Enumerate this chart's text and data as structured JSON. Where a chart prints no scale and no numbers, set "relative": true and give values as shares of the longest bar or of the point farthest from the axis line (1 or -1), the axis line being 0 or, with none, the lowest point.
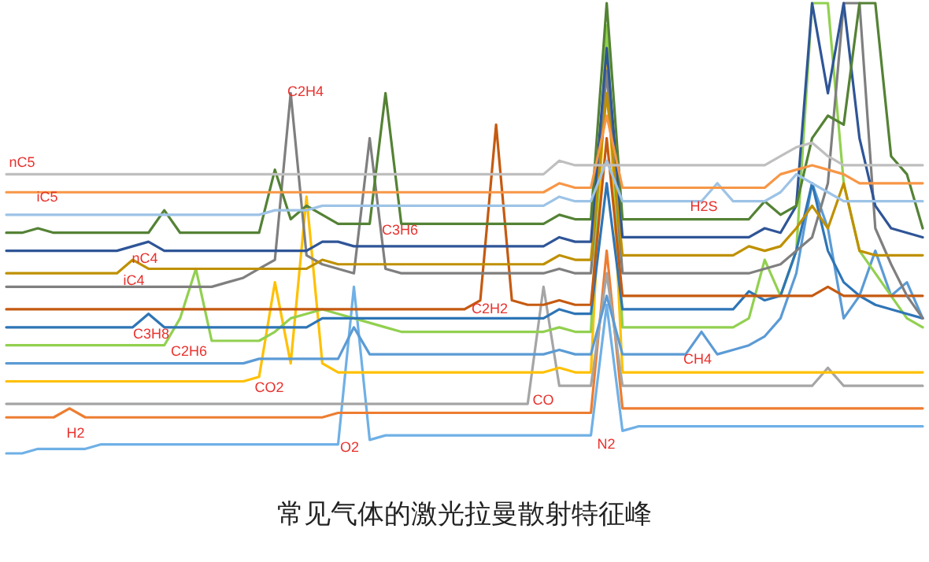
{
  "chart_data": {
    "type": "line",
    "relative": true,
    "title": "常见气体的激光拉曼散射特征峰",
    "categories": [
      null,
      null,
      null,
      null,
      null,
      null,
      null,
      null,
      null,
      null,
      null,
      null,
      null,
      null,
      null,
      null,
      null,
      null,
      null,
      null,
      null,
      null,
      null,
      null,
      null,
      null,
      null,
      null,
      null,
      null,
      null,
      null,
      null,
      null,
      null,
      null,
      null,
      null,
      null,
      null,
      null,
      null,
      null,
      null,
      null,
      null,
      null,
      null,
      null,
      null,
      null,
      null,
      null,
      null,
      null,
      null,
      null,
      null,
      null
    ],
    "annotations": [
      "nC5",
      "iC5",
      "C2H4",
      "C3H6",
      "nC4",
      "iC4",
      "H2S",
      "C2H2",
      "C3H8",
      "C2H6",
      "CH4",
      "CO2",
      "CO",
      "H2",
      "O2",
      "N2"
    ],
    "series": [
      {
        "color": "#bfbfbf",
        "values": [
          0.62,
          0.62,
          0.62,
          0.62,
          0.62,
          0.62,
          0.62,
          0.62,
          0.62,
          0.62,
          0.62,
          0.62,
          0.62,
          0.62,
          0.62,
          0.62,
          0.62,
          0.62,
          0.62,
          0.62,
          0.62,
          0.62,
          0.62,
          0.62,
          0.62,
          0.62,
          0.62,
          0.62,
          0.62,
          0.62,
          0.62,
          0.62,
          0.62,
          0.62,
          0.62,
          0.65,
          0.64,
          0.64,
          0.64,
          0.64,
          0.64,
          0.64,
          0.64,
          0.64,
          0.64,
          0.64,
          0.64,
          0.64,
          0.64,
          0.66,
          0.68,
          0.69,
          0.66,
          0.64,
          0.64,
          0.64,
          0.64,
          0.64,
          0.64
        ]
      },
      {
        "color": "#f79646",
        "values": [
          0.58,
          0.58,
          0.58,
          0.58,
          0.58,
          0.58,
          0.58,
          0.58,
          0.58,
          0.58,
          0.58,
          0.58,
          0.58,
          0.58,
          0.58,
          0.58,
          0.58,
          0.58,
          0.58,
          0.58,
          0.58,
          0.58,
          0.58,
          0.58,
          0.58,
          0.58,
          0.58,
          0.58,
          0.58,
          0.58,
          0.58,
          0.58,
          0.58,
          0.58,
          0.58,
          0.6,
          0.59,
          0.59,
          0.75,
          0.59,
          0.59,
          0.59,
          0.59,
          0.59,
          0.59,
          0.59,
          0.59,
          0.59,
          0.59,
          0.62,
          0.63,
          0.64,
          0.63,
          0.62,
          0.6,
          0.6,
          0.6,
          0.6,
          0.6
        ]
      },
      {
        "color": "#9dc3e6",
        "values": [
          0.53,
          0.53,
          0.53,
          0.53,
          0.53,
          0.53,
          0.53,
          0.53,
          0.53,
          0.53,
          0.53,
          0.53,
          0.53,
          0.53,
          0.53,
          0.53,
          0.53,
          0.54,
          0.54,
          0.54,
          0.55,
          0.55,
          0.55,
          0.55,
          0.55,
          0.55,
          0.55,
          0.55,
          0.55,
          0.55,
          0.55,
          0.55,
          0.55,
          0.55,
          0.55,
          0.57,
          0.56,
          0.56,
          0.65,
          0.56,
          0.56,
          0.56,
          0.56,
          0.56,
          0.56,
          0.6,
          0.56,
          0.56,
          0.56,
          0.58,
          0.62,
          0.6,
          0.58,
          0.56,
          0.56,
          0.56,
          0.56,
          0.56,
          0.56
        ]
      },
      {
        "color": "#548235",
        "values": [
          0.49,
          0.49,
          0.5,
          0.49,
          0.49,
          0.49,
          0.49,
          0.49,
          0.49,
          0.49,
          0.54,
          0.49,
          0.49,
          0.49,
          0.49,
          0.49,
          0.49,
          0.63,
          0.52,
          0.55,
          0.53,
          0.51,
          0.51,
          0.51,
          0.8,
          0.51,
          0.51,
          0.51,
          0.51,
          0.51,
          0.51,
          0.51,
          0.51,
          0.51,
          0.51,
          0.53,
          0.52,
          0.52,
          1.0,
          0.52,
          0.52,
          0.52,
          0.52,
          0.52,
          0.52,
          0.52,
          0.52,
          0.52,
          0.56,
          0.53,
          0.55,
          0.7,
          0.75,
          0.73,
          1.0,
          1.0,
          0.66,
          0.62,
          0.5
        ]
      },
      {
        "color": "#2f5597",
        "values": [
          0.45,
          0.45,
          0.45,
          0.45,
          0.45,
          0.45,
          0.45,
          0.45,
          0.46,
          0.47,
          0.45,
          0.45,
          0.45,
          0.45,
          0.45,
          0.45,
          0.45,
          0.45,
          0.45,
          0.45,
          0.47,
          0.47,
          0.46,
          0.46,
          0.46,
          0.46,
          0.46,
          0.46,
          0.46,
          0.46,
          0.46,
          0.46,
          0.46,
          0.46,
          0.46,
          0.48,
          0.47,
          0.47,
          0.9,
          0.48,
          0.48,
          0.48,
          0.48,
          0.48,
          0.48,
          0.48,
          0.48,
          0.48,
          0.5,
          0.49,
          0.55,
          1.0,
          0.8,
          1.0,
          0.7,
          0.55,
          0.5,
          0.49,
          0.48
        ]
      },
      {
        "color": "#bf9000",
        "values": [
          0.4,
          0.4,
          0.4,
          0.4,
          0.4,
          0.4,
          0.4,
          0.4,
          0.43,
          0.41,
          0.41,
          0.41,
          0.41,
          0.41,
          0.41,
          0.41,
          0.41,
          0.41,
          0.41,
          0.41,
          0.43,
          0.42,
          0.42,
          0.42,
          0.42,
          0.42,
          0.42,
          0.42,
          0.42,
          0.42,
          0.42,
          0.42,
          0.42,
          0.42,
          0.42,
          0.44,
          0.43,
          0.43,
          0.8,
          0.44,
          0.44,
          0.44,
          0.44,
          0.44,
          0.44,
          0.44,
          0.44,
          0.46,
          0.45,
          0.46,
          0.5,
          0.55,
          0.5,
          0.6,
          0.45,
          0.44,
          0.44,
          0.44,
          0.44
        ]
      },
      {
        "color": "#7f7f7f",
        "values": [
          0.37,
          0.37,
          0.37,
          0.37,
          0.37,
          0.37,
          0.37,
          0.37,
          0.37,
          0.37,
          0.37,
          0.37,
          0.37,
          0.37,
          0.38,
          0.39,
          0.41,
          0.43,
          0.8,
          0.44,
          0.42,
          0.41,
          0.4,
          0.7,
          0.41,
          0.4,
          0.4,
          0.4,
          0.4,
          0.4,
          0.4,
          0.4,
          0.4,
          0.4,
          0.4,
          0.41,
          0.4,
          0.4,
          0.85,
          0.4,
          0.4,
          0.4,
          0.4,
          0.4,
          0.4,
          0.4,
          0.4,
          0.4,
          0.41,
          0.42,
          0.45,
          0.48,
          0.6,
          1.0,
          1.0,
          0.5,
          0.42,
          0.35,
          0.3
        ]
      },
      {
        "color": "#c55a11",
        "values": [
          0.32,
          0.32,
          0.32,
          0.32,
          0.32,
          0.32,
          0.32,
          0.32,
          0.32,
          0.32,
          0.32,
          0.32,
          0.32,
          0.32,
          0.32,
          0.32,
          0.32,
          0.32,
          0.32,
          0.32,
          0.32,
          0.32,
          0.32,
          0.32,
          0.32,
          0.32,
          0.32,
          0.32,
          0.32,
          0.32,
          0.34,
          0.73,
          0.34,
          0.33,
          0.33,
          0.34,
          0.33,
          0.33,
          0.7,
          0.35,
          0.35,
          0.35,
          0.35,
          0.35,
          0.35,
          0.35,
          0.35,
          0.35,
          0.35,
          0.35,
          0.35,
          0.35,
          0.37,
          0.35,
          0.35,
          0.35,
          0.35,
          0.35,
          0.35
        ]
      },
      {
        "color": "#2e75b6",
        "values": [
          0.28,
          0.28,
          0.28,
          0.28,
          0.28,
          0.28,
          0.28,
          0.28,
          0.28,
          0.31,
          0.28,
          0.28,
          0.28,
          0.28,
          0.28,
          0.28,
          0.28,
          0.28,
          0.28,
          0.28,
          0.3,
          0.3,
          0.3,
          0.3,
          0.3,
          0.3,
          0.3,
          0.3,
          0.3,
          0.3,
          0.3,
          0.3,
          0.3,
          0.3,
          0.3,
          0.32,
          0.31,
          0.31,
          0.6,
          0.32,
          0.32,
          0.32,
          0.32,
          0.32,
          0.32,
          0.32,
          0.32,
          0.36,
          0.34,
          0.35,
          0.45,
          0.6,
          0.45,
          0.38,
          0.35,
          0.33,
          0.32,
          0.31,
          0.3
        ]
      },
      {
        "color": "#92d050",
        "values": [
          0.24,
          0.24,
          0.24,
          0.24,
          0.24,
          0.24,
          0.24,
          0.24,
          0.24,
          0.24,
          0.24,
          0.3,
          0.41,
          0.25,
          0.25,
          0.25,
          0.25,
          0.27,
          0.3,
          0.31,
          0.32,
          0.31,
          0.3,
          0.29,
          0.28,
          0.27,
          0.27,
          0.27,
          0.27,
          0.27,
          0.27,
          0.27,
          0.27,
          0.27,
          0.27,
          0.28,
          0.27,
          0.27,
          0.95,
          0.28,
          0.28,
          0.28,
          0.28,
          0.28,
          0.28,
          0.28,
          0.28,
          0.3,
          0.43,
          0.35,
          0.45,
          1.0,
          1.0,
          0.6,
          0.45,
          0.4,
          0.35,
          0.3,
          0.28
        ]
      },
      {
        "color": "#5b9bd5",
        "values": [
          0.2,
          0.2,
          0.2,
          0.2,
          0.2,
          0.2,
          0.2,
          0.2,
          0.2,
          0.2,
          0.2,
          0.2,
          0.2,
          0.2,
          0.2,
          0.2,
          0.21,
          0.21,
          0.21,
          0.21,
          0.21,
          0.21,
          0.28,
          0.22,
          0.22,
          0.22,
          0.22,
          0.22,
          0.22,
          0.22,
          0.22,
          0.22,
          0.22,
          0.22,
          0.22,
          0.23,
          0.22,
          0.22,
          0.35,
          0.22,
          0.22,
          0.22,
          0.22,
          0.22,
          0.27,
          0.22,
          0.23,
          0.24,
          0.26,
          0.3,
          0.4,
          0.6,
          0.5,
          0.3,
          0.35,
          0.45,
          0.35,
          0.38,
          0.3
        ]
      },
      {
        "color": "#ffc000",
        "values": [
          0.16,
          0.16,
          0.16,
          0.16,
          0.16,
          0.16,
          0.16,
          0.16,
          0.16,
          0.16,
          0.16,
          0.16,
          0.16,
          0.16,
          0.16,
          0.16,
          0.17,
          0.38,
          0.2,
          0.57,
          0.2,
          0.18,
          0.18,
          0.18,
          0.18,
          0.18,
          0.18,
          0.18,
          0.18,
          0.18,
          0.18,
          0.18,
          0.18,
          0.18,
          0.18,
          0.19,
          0.18,
          0.18,
          0.9,
          0.18,
          0.18,
          0.18,
          0.18,
          0.18,
          0.18,
          0.18,
          0.18,
          0.18,
          0.18,
          0.18,
          0.18,
          0.18,
          0.18,
          0.18,
          0.18,
          0.18,
          0.18,
          0.18,
          0.18
        ]
      },
      {
        "color": "#a5a5a5",
        "values": [
          0.11,
          0.11,
          0.11,
          0.11,
          0.11,
          0.11,
          0.11,
          0.11,
          0.11,
          0.11,
          0.11,
          0.11,
          0.11,
          0.11,
          0.11,
          0.11,
          0.11,
          0.11,
          0.11,
          0.11,
          0.11,
          0.11,
          0.11,
          0.11,
          0.11,
          0.11,
          0.11,
          0.11,
          0.11,
          0.11,
          0.11,
          0.11,
          0.11,
          0.11,
          0.37,
          0.15,
          0.15,
          0.15,
          0.4,
          0.15,
          0.15,
          0.15,
          0.15,
          0.15,
          0.15,
          0.15,
          0.15,
          0.15,
          0.15,
          0.15,
          0.15,
          0.15,
          0.19,
          0.15,
          0.15,
          0.15,
          0.15,
          0.15,
          0.15
        ]
      },
      {
        "color": "#ed7d31",
        "values": [
          0.08,
          0.08,
          0.08,
          0.08,
          0.1,
          0.08,
          0.08,
          0.08,
          0.08,
          0.08,
          0.08,
          0.08,
          0.08,
          0.08,
          0.08,
          0.08,
          0.08,
          0.08,
          0.08,
          0.08,
          0.08,
          0.09,
          0.09,
          0.09,
          0.09,
          0.09,
          0.09,
          0.09,
          0.09,
          0.09,
          0.09,
          0.09,
          0.09,
          0.09,
          0.09,
          0.09,
          0.09,
          0.09,
          0.45,
          0.1,
          0.1,
          0.1,
          0.1,
          0.1,
          0.1,
          0.1,
          0.1,
          0.1,
          0.1,
          0.1,
          0.1,
          0.1,
          0.1,
          0.1,
          0.1,
          0.1,
          0.1,
          0.1,
          0.1
        ]
      },
      {
        "color": "#6fb0e6",
        "values": [
          0.0,
          0.0,
          0.01,
          0.01,
          0.01,
          0.01,
          0.02,
          0.02,
          0.02,
          0.02,
          0.02,
          0.02,
          0.02,
          0.02,
          0.02,
          0.02,
          0.02,
          0.02,
          0.02,
          0.02,
          0.02,
          0.02,
          0.37,
          0.03,
          0.04,
          0.04,
          0.04,
          0.04,
          0.04,
          0.04,
          0.04,
          0.04,
          0.04,
          0.04,
          0.04,
          0.04,
          0.04,
          0.04,
          0.33,
          0.05,
          0.06,
          0.06,
          0.06,
          0.06,
          0.06,
          0.06,
          0.06,
          0.06,
          0.06,
          0.06,
          0.06,
          0.06,
          0.06,
          0.06,
          0.06,
          0.06,
          0.06,
          0.06,
          0.06
        ]
      }
    ]
  }
}
